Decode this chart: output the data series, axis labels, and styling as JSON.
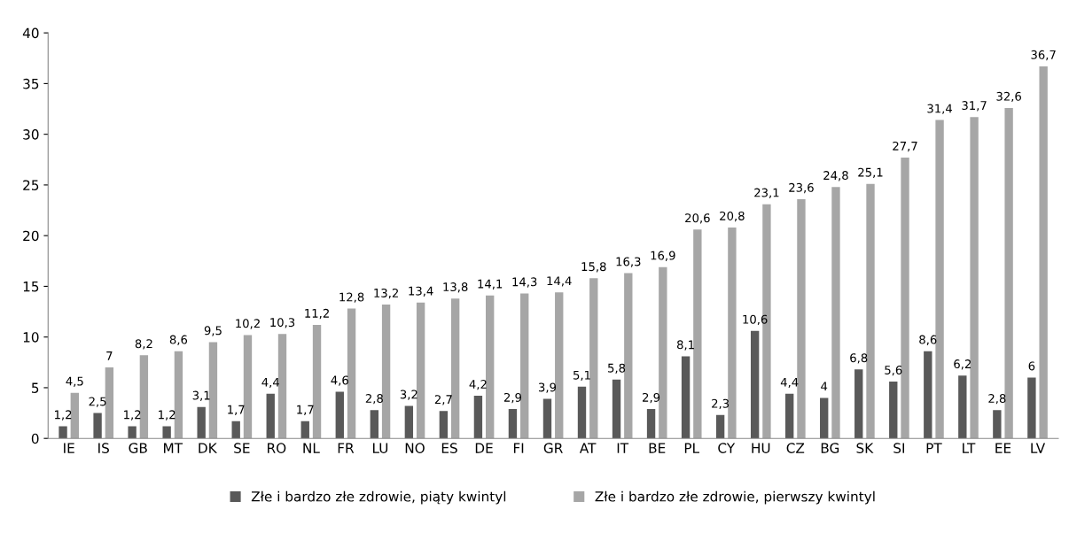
{
  "chart_data": {
    "type": "bar",
    "categories": [
      "IE",
      "IS",
      "GB",
      "MT",
      "DK",
      "SE",
      "RO",
      "NL",
      "FR",
      "LU",
      "NO",
      "ES",
      "DE",
      "FI",
      "GR",
      "AT",
      "IT",
      "BE",
      "PL",
      "CY",
      "HU",
      "CZ",
      "BG",
      "SK",
      "SI",
      "PT",
      "LT",
      "EE",
      "LV"
    ],
    "series": [
      {
        "name": "Złe i bardzo złe zdrowie, piąty kwintyl",
        "color": "#595959",
        "values": [
          1.2,
          2.5,
          1.2,
          1.2,
          3.1,
          1.7,
          4.4,
          1.7,
          4.6,
          2.8,
          3.2,
          2.7,
          4.2,
          2.9,
          3.9,
          5.1,
          5.8,
          2.9,
          8.1,
          2.3,
          10.6,
          4.4,
          4,
          6.8,
          5.6,
          8.6,
          6.2,
          2.8,
          6
        ],
        "value_labels": [
          "1,2",
          "2,5",
          "1,2",
          "1,2",
          "3,1",
          "1,7",
          "4,4",
          "1,7",
          "4,6",
          "2,8",
          "3,2",
          "2,7",
          "4,2",
          "2,9",
          "3,9",
          "5,1",
          "5,8",
          "2,9",
          "8,1",
          "2,3",
          "10,6",
          "4,4",
          "4",
          "6,8",
          "5,6",
          "8,6",
          "6,2",
          "2,8",
          "6"
        ]
      },
      {
        "name": "Złe i bardzo złe zdrowie, pierwszy kwintyl",
        "color": "#a6a6a6",
        "values": [
          4.5,
          7,
          8.2,
          8.6,
          9.5,
          10.2,
          10.3,
          11.2,
          12.8,
          13.2,
          13.4,
          13.8,
          14.1,
          14.3,
          14.4,
          15.8,
          16.3,
          16.9,
          20.6,
          20.8,
          23.1,
          23.6,
          24.8,
          25.1,
          27.7,
          31.4,
          31.7,
          32.6,
          36.7
        ],
        "value_labels": [
          "4,5",
          "7",
          "8,2",
          "8,6",
          "9,5",
          "10,2",
          "10,3",
          "11,2",
          "12,8",
          "13,2",
          "13,4",
          "13,8",
          "14,1",
          "14,3",
          "14,4",
          "15,8",
          "16,3",
          "16,9",
          "20,6",
          "20,8",
          "23,1",
          "23,6",
          "24,8",
          "25,1",
          "27,7",
          "31,4",
          "31,7",
          "32,6",
          "36,7"
        ]
      }
    ],
    "ylim": [
      0,
      40
    ],
    "yticks": [
      0,
      5,
      10,
      15,
      20,
      25,
      30,
      35,
      40
    ],
    "grid": false,
    "legend": "bottom"
  }
}
